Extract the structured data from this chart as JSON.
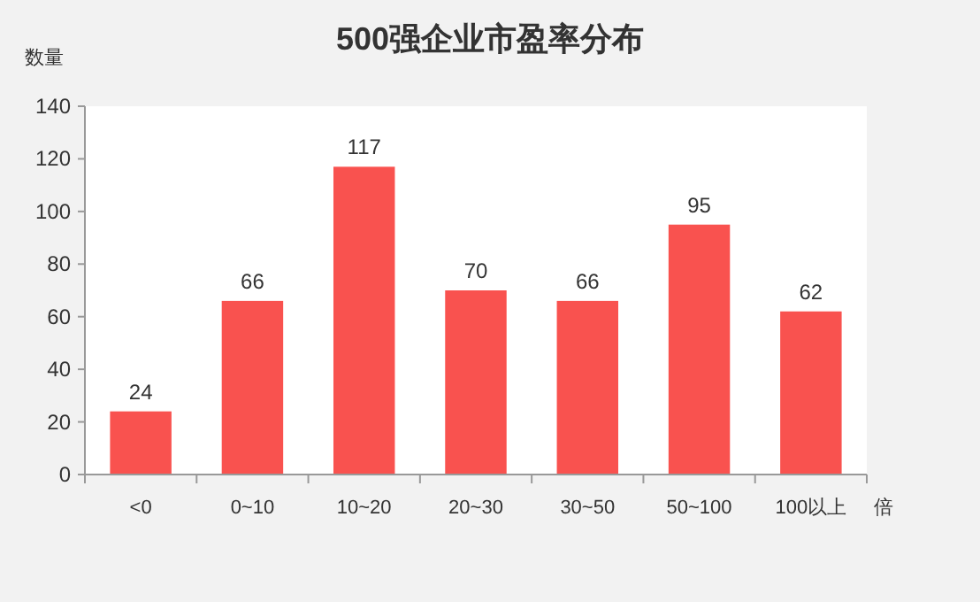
{
  "chart_data": {
    "type": "bar",
    "title": "500强企业市盈率分布",
    "ylabel": "数量",
    "xlabel": "倍",
    "categories": [
      "<0",
      "0~10",
      "10~20",
      "20~30",
      "30~50",
      "50~100",
      "100以上"
    ],
    "values": [
      24,
      66,
      117,
      70,
      66,
      95,
      62
    ],
    "color": "#f9524f",
    "ylim": [
      0,
      140
    ],
    "yticks": [
      0,
      20,
      40,
      60,
      80,
      100,
      120,
      140
    ],
    "data_labels": true
  }
}
